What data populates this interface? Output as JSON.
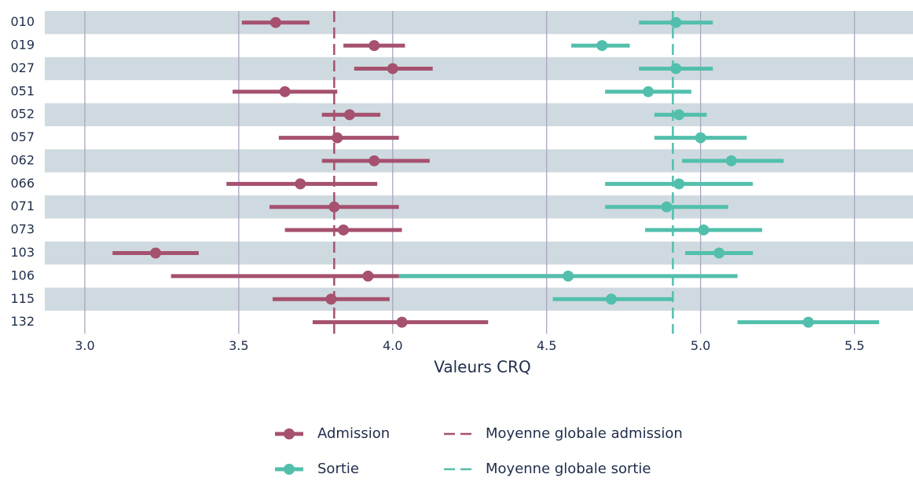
{
  "chart_data": {
    "type": "dot-whisker",
    "xlabel": "Valeurs CRQ",
    "categories": [
      "010",
      "019",
      "027",
      "051",
      "052",
      "057",
      "062",
      "066",
      "071",
      "073",
      "103",
      "106",
      "115",
      "132"
    ],
    "series": [
      {
        "name": "Admission",
        "color": "#a5516f",
        "values": [
          3.62,
          3.94,
          4.0,
          3.65,
          3.86,
          3.82,
          3.94,
          3.7,
          3.81,
          3.84,
          3.23,
          3.92,
          3.8,
          4.03
        ],
        "low": [
          3.51,
          3.84,
          3.875,
          3.48,
          3.77,
          3.63,
          3.77,
          3.46,
          3.6,
          3.65,
          3.09,
          3.28,
          3.61,
          3.74
        ],
        "high": [
          3.73,
          4.04,
          4.13,
          3.82,
          3.96,
          4.02,
          4.12,
          3.95,
          4.02,
          4.03,
          3.37,
          4.56,
          3.99,
          4.31
        ]
      },
      {
        "name": "Sortie",
        "color": "#52bfac",
        "values": [
          4.92,
          4.68,
          4.92,
          4.83,
          4.93,
          5.0,
          5.1,
          4.93,
          4.89,
          5.01,
          5.06,
          4.57,
          4.71,
          5.35
        ],
        "low": [
          4.8,
          4.58,
          4.8,
          4.69,
          4.85,
          4.85,
          4.94,
          4.69,
          4.69,
          4.82,
          4.95,
          4.02,
          4.52,
          5.12
        ],
        "high": [
          5.04,
          4.77,
          5.04,
          4.97,
          5.02,
          5.15,
          5.27,
          5.17,
          5.09,
          5.2,
          5.17,
          5.12,
          4.91,
          5.58
        ]
      }
    ],
    "mean_lines": [
      {
        "name": "Moyenne globale admission",
        "value": 3.81,
        "color": "#a5516f"
      },
      {
        "name": "Moyenne globale sortie",
        "value": 4.91,
        "color": "#52bfac"
      }
    ],
    "xlim": [
      2.87,
      5.69
    ],
    "xticks": [
      {
        "value": 3,
        "label": "3.0"
      },
      3.5,
      {
        "value": 4,
        "label": "4.0"
      },
      4.5,
      {
        "value": 5,
        "label": "5.0"
      },
      5.5
    ],
    "grid": true
  }
}
